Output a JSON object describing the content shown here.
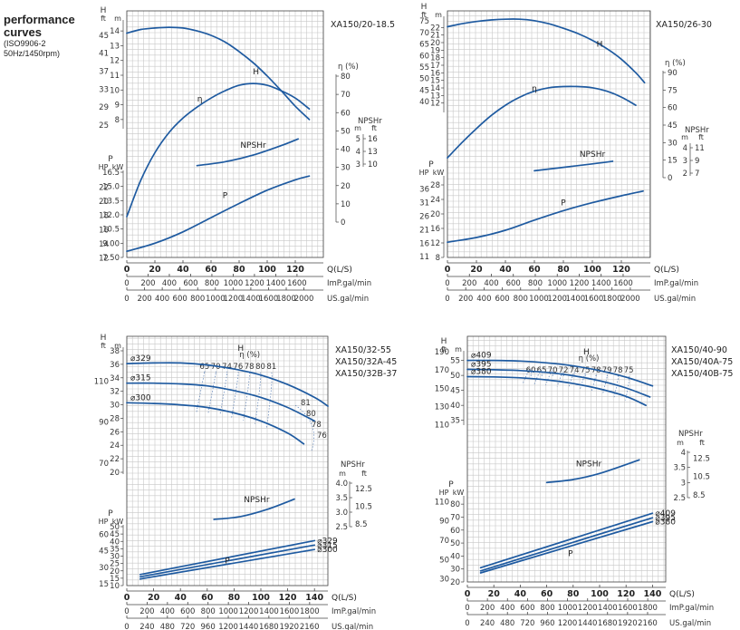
{
  "page": {
    "title_lines": [
      "performance",
      "curves",
      "(ISO9906-2",
      "50Hz/1450rpm)"
    ]
  },
  "colors": {
    "curve": "#1e5aa0",
    "grid": "#c8c8c8",
    "axis": "#444444",
    "text": "#333333",
    "dotted": "#5a7fb5"
  },
  "chart_data": [
    {
      "type": "line",
      "models": [
        "XA150/20-18.5"
      ],
      "x": {
        "qls_ticks": [
          0,
          20,
          40,
          60,
          80,
          100,
          120
        ],
        "qls_label": "Q(L/S)",
        "qls_max": 140,
        "imp_ticks": [
          0,
          200,
          400,
          600,
          800,
          1000,
          1200,
          1400,
          1600
        ],
        "imp_label": "ImP.gal/min",
        "us_ticks": [
          0,
          200,
          400,
          600,
          800,
          1000,
          1200,
          1400,
          1600,
          1800,
          2000
        ],
        "us_label": "US.gal/min"
      },
      "head": {
        "range_m": [
          7.5,
          14.5
        ],
        "m_ticks": [
          8,
          9,
          10,
          11,
          12,
          13,
          14
        ],
        "ft_ticks": [
          25,
          29,
          33,
          37,
          41,
          45
        ],
        "labels": [
          "H",
          "ft",
          "m"
        ]
      },
      "eff": {
        "range": [
          0,
          80
        ],
        "ticks": [
          0,
          10,
          20,
          30,
          40,
          50,
          60,
          70,
          80
        ],
        "label": "η (%)"
      },
      "npsh": {
        "label": "NPSHr",
        "units": [
          "m",
          "ft"
        ],
        "m_ticks": [
          3,
          4,
          5
        ],
        "ft_ticks": [
          10,
          13,
          16
        ]
      },
      "power": {
        "range_kw": [
          7.5,
          16.5
        ],
        "kw_ticks": [
          7.5,
          9.0,
          10.5,
          12.0,
          13.5,
          15.0,
          16.5
        ],
        "kw_labels": [
          "7.50",
          "9.00",
          "10.5",
          "12.0",
          "13.5",
          "15.0",
          "16.5"
        ],
        "hp_ticks": [
          10,
          12,
          14,
          16,
          18,
          20,
          22
        ],
        "hp_labels": [
          "12",
          "14",
          "16",
          "18",
          "20",
          "22"
        ],
        "labels": [
          "P",
          "HP",
          "kW"
        ]
      },
      "series": [
        {
          "name": "H",
          "kind": "head",
          "q": [
            0,
            10,
            20,
            30,
            40,
            50,
            60,
            70,
            80,
            90,
            100,
            110,
            120,
            130
          ],
          "y": [
            13.85,
            14.1,
            14.2,
            14.25,
            14.2,
            14.0,
            13.7,
            13.25,
            12.6,
            11.85,
            10.95,
            9.95,
            8.9,
            8.0
          ]
        },
        {
          "name": "η",
          "kind": "eff",
          "q": [
            0,
            10,
            20,
            30,
            40,
            50,
            60,
            70,
            80,
            90,
            100,
            110,
            120,
            130
          ],
          "y": [
            3,
            23,
            38,
            49,
            57,
            63,
            68,
            72,
            75,
            76,
            75,
            72,
            68,
            62
          ]
        },
        {
          "name": "NPSHr",
          "kind": "npsh",
          "q": [
            50,
            70,
            90,
            110,
            122
          ],
          "y": [
            3.35,
            3.55,
            3.9,
            4.4,
            4.75
          ]
        },
        {
          "name": "P",
          "kind": "power",
          "q": [
            0,
            20,
            40,
            60,
            80,
            100,
            120,
            130
          ],
          "y": [
            8.15,
            9.0,
            10.2,
            11.7,
            13.2,
            14.6,
            15.7,
            16.1
          ]
        }
      ]
    },
    {
      "type": "line",
      "models": [
        "XA150/26-30"
      ],
      "x": {
        "qls_ticks": [
          0,
          20,
          40,
          60,
          80,
          100,
          120
        ],
        "qls_label": "Q(L/S)",
        "qls_max": 140,
        "imp_ticks": [
          0,
          200,
          400,
          600,
          800,
          1000,
          1200,
          1400,
          1600
        ],
        "imp_label": "ImP.gal/min",
        "us_ticks": [
          0,
          200,
          400,
          600,
          800,
          1000,
          1200,
          1400,
          1600,
          1800,
          2000
        ],
        "us_label": "US.gal/min"
      },
      "head": {
        "range_m": [
          11,
          23
        ],
        "m_ticks": [
          12,
          13,
          14,
          15,
          16,
          17,
          18,
          19,
          20,
          21,
          22
        ],
        "ft_ticks": [
          40,
          45,
          50,
          55,
          60,
          65,
          70,
          75
        ],
        "labels": [
          "H",
          "ft",
          "m"
        ]
      },
      "eff": {
        "range": [
          0,
          90
        ],
        "ticks": [
          0,
          15,
          30,
          45,
          60,
          75,
          90
        ],
        "label": "η (%)"
      },
      "npsh": {
        "label": "NPSHr",
        "units": [
          "m",
          "ft"
        ],
        "m_ticks": [
          2,
          3,
          4
        ],
        "ft_ticks": [
          7,
          9,
          11
        ]
      },
      "power": {
        "range_kw": [
          8,
          30
        ],
        "kw_ticks": [
          8,
          12,
          16,
          20,
          24,
          28
        ],
        "kw_labels": [
          "8",
          "12",
          "16",
          "20",
          "24",
          "28"
        ],
        "hp_ticks": [
          11,
          16,
          21,
          26,
          31,
          36
        ],
        "hp_labels": [
          "11",
          "16",
          "21",
          "26",
          "31",
          "36"
        ],
        "labels": [
          "P",
          "HP",
          "kW"
        ]
      },
      "series": [
        {
          "name": "H",
          "kind": "head",
          "q": [
            0,
            10,
            20,
            30,
            40,
            50,
            60,
            70,
            80,
            90,
            100,
            110,
            120,
            130,
            136
          ],
          "y": [
            22.1,
            22.5,
            22.8,
            23.0,
            23.1,
            23.1,
            22.9,
            22.5,
            21.9,
            21.2,
            20.3,
            19.2,
            17.8,
            16.0,
            14.7
          ]
        },
        {
          "name": "η",
          "kind": "eff",
          "q": [
            0,
            10,
            20,
            30,
            40,
            50,
            60,
            70,
            80,
            90,
            100,
            110,
            120,
            130
          ],
          "y": [
            17,
            30,
            42,
            53,
            62,
            69,
            74,
            77,
            78,
            78,
            77,
            74,
            69,
            62
          ]
        },
        {
          "name": "NPSHr",
          "kind": "npsh",
          "q": [
            60,
            80,
            100,
            114
          ],
          "y": [
            2.4,
            2.6,
            2.8,
            2.95
          ]
        },
        {
          "name": "P",
          "kind": "power",
          "q": [
            0,
            20,
            40,
            60,
            80,
            100,
            120,
            135
          ],
          "y": [
            12.2,
            13.5,
            15.5,
            18.3,
            20.9,
            23.1,
            25.0,
            26.3
          ]
        }
      ]
    },
    {
      "type": "line",
      "models": [
        "XA150/32-55",
        "XA150/32A-45",
        "XA150/32B-37"
      ],
      "x": {
        "qls_ticks": [
          0,
          20,
          40,
          60,
          80,
          100,
          120,
          140
        ],
        "qls_label": "Q(L/S)",
        "qls_max": 150,
        "imp_ticks": [
          0,
          200,
          400,
          600,
          800,
          1000,
          1200,
          1400,
          1600,
          1800
        ],
        "imp_label": "ImP.gal/min",
        "us_ticks": [
          0,
          240,
          480,
          720,
          960,
          1200,
          1440,
          1680,
          1920,
          2160
        ],
        "us_label": "US.gal/min"
      },
      "head": {
        "range_m": [
          20,
          38
        ],
        "m_ticks": [
          20,
          22,
          24,
          26,
          28,
          30,
          32,
          34,
          36,
          38
        ],
        "ft_ticks": [
          70,
          90,
          110
        ],
        "labels": [
          "H",
          "ft",
          "m"
        ]
      },
      "npsh": {
        "label": "NPSHr",
        "units": [
          "m",
          "ft"
        ],
        "range_m": [
          2.5,
          4.0
        ],
        "m_ticks": [
          2.5,
          3.0,
          3.5,
          4.0
        ],
        "m_labels": [
          "2.5",
          "3.0",
          "3.5",
          "4.0"
        ],
        "ft_ticks": [
          8.5,
          10.5,
          12.5
        ],
        "ft_labels": [
          "8.5",
          "10.5",
          "12.5"
        ]
      },
      "power": {
        "range_kw": [
          10,
          50
        ],
        "kw_ticks": [
          10,
          15,
          20,
          25,
          30,
          35,
          40,
          45,
          50
        ],
        "kw_labels": [
          "10",
          "15",
          "20",
          "25",
          "30",
          "35",
          "40",
          "45",
          "50"
        ],
        "hp_ticks": [
          15,
          30,
          45,
          60,
          75
        ],
        "hp_labels": [
          "15",
          "30",
          "45",
          "60",
          "75"
        ],
        "labels": [
          "P",
          "HP",
          "kW"
        ]
      },
      "eff_label": "η (%)",
      "eff_contours": [
        "65",
        "70",
        "74",
        "76",
        "78",
        "80",
        "81"
      ],
      "eff_right_labels": [
        "81",
        "80",
        "78",
        "76"
      ],
      "series": [
        {
          "name": "⌀329",
          "kind": "head",
          "q": [
            0,
            20,
            40,
            60,
            80,
            100,
            120,
            140,
            150
          ],
          "y": [
            36.1,
            36.2,
            36.2,
            35.9,
            35.3,
            34.4,
            33.0,
            31.1,
            29.8
          ]
        },
        {
          "name": "⌀315",
          "kind": "head",
          "q": [
            0,
            20,
            40,
            60,
            80,
            100,
            120,
            140
          ],
          "y": [
            33.2,
            33.2,
            33.1,
            32.8,
            32.1,
            31.1,
            29.6,
            27.6
          ]
        },
        {
          "name": "⌀300",
          "kind": "head",
          "q": [
            0,
            20,
            40,
            60,
            80,
            100,
            120,
            132
          ],
          "y": [
            30.3,
            30.2,
            30.0,
            29.6,
            28.8,
            27.6,
            25.8,
            24.2
          ]
        },
        {
          "name": "NPSHr",
          "kind": "npsh",
          "q": [
            65,
            85,
            105,
            125
          ],
          "y": [
            2.75,
            2.85,
            3.1,
            3.45
          ]
        },
        {
          "name": "⌀329",
          "kind": "power",
          "q": [
            10,
            140
          ],
          "y": [
            17.5,
            40.5
          ]
        },
        {
          "name": "⌀315",
          "kind": "power",
          "q": [
            10,
            140
          ],
          "y": [
            16.0,
            37.5
          ]
        },
        {
          "name": "⌀300",
          "kind": "power",
          "q": [
            10,
            140
          ],
          "y": [
            14.5,
            34.5
          ]
        }
      ],
      "power_label": "P"
    },
    {
      "type": "line",
      "models": [
        "XA150/40-90",
        "XA150/40A-75",
        "XA150/40B-75"
      ],
      "x": {
        "qls_ticks": [
          0,
          20,
          40,
          60,
          80,
          100,
          120,
          140
        ],
        "qls_label": "Q(L/S)",
        "qls_max": 150,
        "imp_ticks": [
          0,
          200,
          400,
          600,
          800,
          1000,
          1200,
          1400,
          1600,
          1800
        ],
        "imp_label": "ImP.gal/min",
        "us_ticks": [
          0,
          240,
          480,
          720,
          960,
          1200,
          1440,
          1680,
          1920,
          2160
        ],
        "us_label": "US.gal/min"
      },
      "head": {
        "range_m": [
          34,
          57
        ],
        "m_ticks": [
          35,
          40,
          45,
          50,
          55
        ],
        "ft_ticks": [
          110,
          130,
          150,
          170,
          190
        ],
        "labels": [
          "H",
          "ft",
          "m"
        ]
      },
      "npsh": {
        "label": "NPSHr",
        "units": [
          "m",
          "ft"
        ],
        "range_m": [
          2.5,
          4.0
        ],
        "m_ticks": [
          2.5,
          3.0,
          3.5,
          4.0
        ],
        "m_labels": [
          "2.5",
          "3",
          "3.5",
          "4"
        ],
        "ft_ticks": [
          8.5,
          10.5,
          12.5
        ],
        "ft_labels": [
          "8.5",
          "10.5",
          "12.5"
        ]
      },
      "power": {
        "range_kw": [
          20,
          85
        ],
        "kw_ticks": [
          20,
          30,
          40,
          50,
          60,
          70,
          80
        ],
        "kw_labels": [
          "20",
          "30",
          "40",
          "50",
          "60",
          "70",
          "80"
        ],
        "hp_ticks": [
          30,
          50,
          70,
          90,
          110
        ],
        "hp_labels": [
          "30",
          "50",
          "70",
          "90",
          "110"
        ],
        "labels": [
          "P",
          "HP",
          "kW"
        ]
      },
      "eff_label": "η (%)",
      "eff_contours": [
        "60",
        "65",
        "70",
        "72",
        "74",
        "75",
        "78",
        "79",
        "78",
        "75"
      ],
      "series": [
        {
          "name": "⌀409",
          "kind": "head",
          "q": [
            0,
            20,
            40,
            60,
            80,
            100,
            120,
            140
          ],
          "y": [
            55.0,
            55.0,
            54.8,
            54.2,
            53.2,
            51.6,
            49.4,
            46.5
          ]
        },
        {
          "name": "⌀395",
          "kind": "head",
          "q": [
            0,
            20,
            40,
            60,
            80,
            100,
            120,
            138
          ],
          "y": [
            52.0,
            51.9,
            51.6,
            51.0,
            49.9,
            48.2,
            45.8,
            42.8
          ]
        },
        {
          "name": "⌀380",
          "kind": "head",
          "q": [
            0,
            20,
            40,
            60,
            80,
            100,
            120,
            135
          ],
          "y": [
            49.6,
            49.5,
            49.2,
            48.5,
            47.3,
            45.5,
            43.0,
            40.0
          ]
        },
        {
          "name": "NPSHr",
          "kind": "npsh",
          "q": [
            60,
            80,
            100,
            130
          ],
          "y": [
            3.0,
            3.1,
            3.3,
            3.75
          ]
        },
        {
          "name": "⌀409",
          "kind": "power",
          "q": [
            10,
            140
          ],
          "y": [
            31.0,
            73.0
          ]
        },
        {
          "name": "⌀395",
          "kind": "power",
          "q": [
            10,
            140
          ],
          "y": [
            28.5,
            69.5
          ]
        },
        {
          "name": "⌀380",
          "kind": "power",
          "q": [
            10,
            140
          ],
          "y": [
            27.0,
            66.5
          ]
        }
      ],
      "power_label": "P"
    }
  ]
}
